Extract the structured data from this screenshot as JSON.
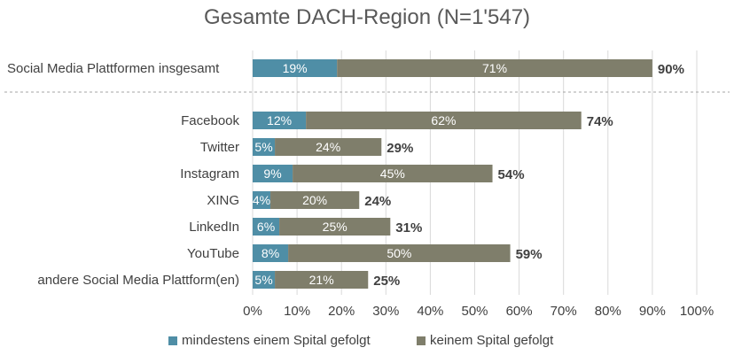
{
  "chart_data": {
    "type": "bar",
    "title": "Gesamte DACH-Region (N=1'547)",
    "orientation": "horizontal-stacked",
    "categories": [
      "Social Media Plattformen insgesamt",
      "Facebook",
      "Twitter",
      "Instagram",
      "XING",
      "LinkedIn",
      "YouTube",
      "andere Social Media Plattform(en)"
    ],
    "series": [
      {
        "name": "mindestens einem Spital gefolgt",
        "color": "#4f8ea6",
        "values": [
          19,
          12,
          5,
          9,
          4,
          6,
          8,
          5
        ],
        "labels": [
          "19%",
          "12%",
          "5%",
          "9%",
          "4%",
          "6%",
          "8%",
          "5%"
        ]
      },
      {
        "name": "keinem Spital gefolgt",
        "color": "#7f7e6b",
        "values": [
          71,
          62,
          24,
          45,
          20,
          25,
          50,
          21
        ],
        "labels": [
          "71%",
          "62%",
          "24%",
          "45%",
          "20%",
          "25%",
          "50%",
          "21%"
        ]
      }
    ],
    "totals": [
      "90%",
      "74%",
      "29%",
      "54%",
      "24%",
      "31%",
      "59%",
      "25%"
    ],
    "xlim": [
      0,
      100
    ],
    "xticks": [
      "0%",
      "10%",
      "20%",
      "30%",
      "40%",
      "50%",
      "60%",
      "70%",
      "80%",
      "90%",
      "100%"
    ],
    "grid": true,
    "legend_position": "bottom"
  }
}
